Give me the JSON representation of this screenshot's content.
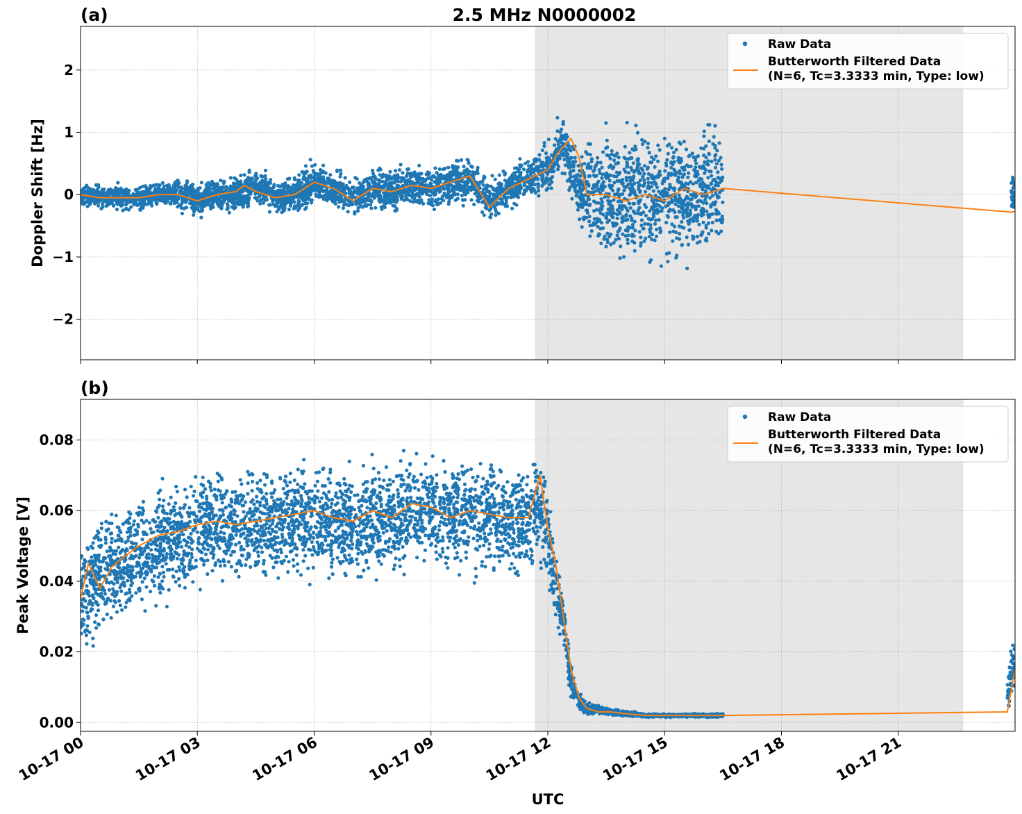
{
  "figure_title": "2.5 MHz N0000002",
  "xlabel": "UTC",
  "x_tick_labels": [
    "10-17 00",
    "10-17 03",
    "10-17 06",
    "10-17 09",
    "10-17 12",
    "10-17 15",
    "10-17 18",
    "10-17 21"
  ],
  "colors": {
    "raw": "#1f77b4",
    "filtered": "#ff7f0e",
    "shade": "#e6e6e6",
    "grid": "#b0b0b0"
  },
  "chart_data": [
    {
      "panel_label": "(a)",
      "type": "scatter",
      "ylabel": "Doppler Shift [Hz]",
      "x_unit": "hours UTC on 10-17",
      "xlim": [
        0,
        24
      ],
      "ylim": [
        -2.65,
        2.7
      ],
      "yticks": [
        -2,
        -1,
        0,
        1,
        2
      ],
      "ytick_labels": [
        "−2",
        "−1",
        "0",
        "1",
        "2"
      ],
      "grid": true,
      "legend_position": "top-right",
      "shaded_region": [
        11.67,
        22.67
      ],
      "series": [
        {
          "name": "Raw Data",
          "kind": "scatter",
          "segments": [
            {
              "x0": 0.0,
              "x1": 16.5,
              "x": [
                0.0,
                0.5,
                1.0,
                1.5,
                2.0,
                2.5,
                3.0,
                3.5,
                4.0,
                4.5,
                5.0,
                5.5,
                6.0,
                6.5,
                7.0,
                7.5,
                8.0,
                8.5,
                9.0,
                9.5,
                10.0,
                10.5,
                11.0,
                11.5,
                12.0,
                12.4,
                12.8,
                13.2,
                13.6,
                14.0,
                14.5,
                15.0,
                15.5,
                16.0,
                16.5
              ],
              "center": [
                0.0,
                -0.05,
                -0.05,
                -0.05,
                0.0,
                0.0,
                -0.1,
                0.0,
                0.0,
                0.15,
                -0.05,
                0.0,
                0.2,
                0.1,
                -0.05,
                0.1,
                0.05,
                0.15,
                0.1,
                0.2,
                0.25,
                -0.1,
                0.1,
                0.25,
                0.4,
                0.85,
                0.1,
                0.0,
                0.0,
                0.0,
                0.05,
                0.0,
                0.0,
                0.05,
                0.05
              ],
              "spread": [
                0.12,
                0.15,
                0.15,
                0.15,
                0.15,
                0.18,
                0.2,
                0.2,
                0.2,
                0.22,
                0.2,
                0.22,
                0.25,
                0.22,
                0.22,
                0.25,
                0.25,
                0.25,
                0.25,
                0.28,
                0.28,
                0.25,
                0.25,
                0.25,
                0.3,
                0.35,
                0.45,
                0.7,
                0.8,
                0.85,
                0.85,
                0.85,
                0.85,
                0.85,
                0.85
              ]
            },
            {
              "x0": 23.9,
              "x1": 24.0,
              "x": [
                23.9,
                24.0
              ],
              "center": [
                0.0,
                0.0
              ],
              "spread": [
                0.25,
                0.25
              ]
            }
          ]
        },
        {
          "name": "Butterworth Filtered Data\n(N=6, Tc=3.3333 min, Type: low)",
          "kind": "line",
          "x": [
            0.0,
            0.5,
            1.0,
            1.5,
            2.0,
            2.5,
            3.0,
            3.5,
            4.0,
            4.2,
            4.5,
            5.0,
            5.5,
            6.0,
            6.5,
            7.0,
            7.5,
            8.0,
            8.5,
            9.0,
            9.5,
            10.0,
            10.5,
            11.0,
            11.5,
            12.0,
            12.3,
            12.6,
            12.8,
            13.0,
            13.5,
            14.0,
            14.5,
            15.0,
            15.5,
            16.0,
            16.5,
            23.9,
            24.0
          ],
          "y": [
            0.0,
            -0.05,
            -0.05,
            -0.05,
            0.0,
            0.0,
            -0.1,
            0.0,
            0.05,
            0.15,
            0.05,
            -0.05,
            0.0,
            0.2,
            0.1,
            -0.1,
            0.1,
            0.05,
            0.15,
            0.1,
            0.2,
            0.3,
            -0.2,
            0.1,
            0.25,
            0.4,
            0.7,
            0.9,
            0.6,
            0.0,
            0.0,
            -0.1,
            0.0,
            -0.1,
            0.1,
            0.0,
            0.1,
            -0.28,
            -0.27
          ]
        }
      ]
    },
    {
      "panel_label": "(b)",
      "type": "scatter",
      "ylabel": "Peak Voltage [V]",
      "x_unit": "hours UTC on 10-17",
      "xlim": [
        0,
        24
      ],
      "ylim": [
        -0.0025,
        0.0915
      ],
      "yticks": [
        0.0,
        0.02,
        0.04,
        0.06,
        0.08
      ],
      "ytick_labels": [
        "0.00",
        "0.02",
        "0.04",
        "0.06",
        "0.08"
      ],
      "grid": true,
      "legend_position": "top-right",
      "shaded_region": [
        11.67,
        22.67
      ],
      "series": [
        {
          "name": "Raw Data",
          "kind": "scatter",
          "segments": [
            {
              "x0": 0.0,
              "x1": 16.5,
              "x": [
                0.0,
                0.5,
                1.0,
                1.5,
                2.0,
                2.5,
                3.0,
                3.5,
                4.0,
                4.5,
                5.0,
                5.5,
                6.0,
                6.5,
                7.0,
                7.5,
                8.0,
                8.5,
                9.0,
                9.5,
                10.0,
                10.5,
                11.0,
                11.5,
                11.8,
                12.0,
                12.2,
                12.4,
                12.6,
                12.8,
                13.0,
                13.3,
                13.6,
                14.0,
                14.5,
                15.0,
                15.5,
                16.0,
                16.5
              ],
              "center": [
                0.035,
                0.042,
                0.045,
                0.048,
                0.05,
                0.052,
                0.055,
                0.057,
                0.056,
                0.055,
                0.057,
                0.058,
                0.058,
                0.057,
                0.056,
                0.058,
                0.058,
                0.06,
                0.06,
                0.058,
                0.06,
                0.058,
                0.058,
                0.057,
                0.062,
                0.052,
                0.04,
                0.028,
                0.012,
                0.006,
                0.004,
                0.0035,
                0.003,
                0.0025,
                0.002,
                0.002,
                0.002,
                0.002,
                0.002
              ],
              "spread": [
                0.012,
                0.012,
                0.013,
                0.013,
                0.013,
                0.012,
                0.012,
                0.012,
                0.012,
                0.012,
                0.012,
                0.012,
                0.012,
                0.012,
                0.012,
                0.012,
                0.012,
                0.012,
                0.012,
                0.012,
                0.012,
                0.012,
                0.012,
                0.012,
                0.012,
                0.01,
                0.008,
                0.006,
                0.004,
                0.002,
                0.0015,
                0.001,
                0.0008,
                0.0006,
                0.0004,
                0.0004,
                0.0004,
                0.0004,
                0.0004
              ]
            },
            {
              "x0": 23.8,
              "x1": 24.0,
              "x": [
                23.8,
                24.0
              ],
              "center": [
                0.008,
                0.018
              ],
              "spread": [
                0.004,
                0.008
              ]
            }
          ]
        },
        {
          "name": "Butterworth Filtered Data\n(N=6, Tc=3.3333 min, Type: low)",
          "kind": "line",
          "x": [
            0.0,
            0.2,
            0.5,
            0.8,
            1.0,
            1.5,
            2.0,
            2.5,
            3.0,
            3.5,
            4.0,
            4.5,
            5.0,
            5.5,
            6.0,
            6.5,
            7.0,
            7.5,
            8.0,
            8.5,
            9.0,
            9.5,
            10.0,
            10.5,
            11.0,
            11.5,
            11.8,
            12.0,
            12.2,
            12.4,
            12.6,
            12.8,
            13.0,
            13.3,
            13.6,
            14.0,
            14.5,
            15.0,
            15.5,
            16.0,
            16.5,
            23.8,
            24.0
          ],
          "y": [
            0.035,
            0.045,
            0.038,
            0.044,
            0.046,
            0.05,
            0.053,
            0.054,
            0.056,
            0.057,
            0.056,
            0.057,
            0.058,
            0.059,
            0.06,
            0.058,
            0.057,
            0.06,
            0.058,
            0.062,
            0.061,
            0.058,
            0.06,
            0.059,
            0.058,
            0.058,
            0.07,
            0.055,
            0.045,
            0.03,
            0.015,
            0.007,
            0.004,
            0.003,
            0.003,
            0.0025,
            0.002,
            0.002,
            0.002,
            0.002,
            0.002,
            0.003,
            0.015
          ]
        }
      ]
    }
  ]
}
